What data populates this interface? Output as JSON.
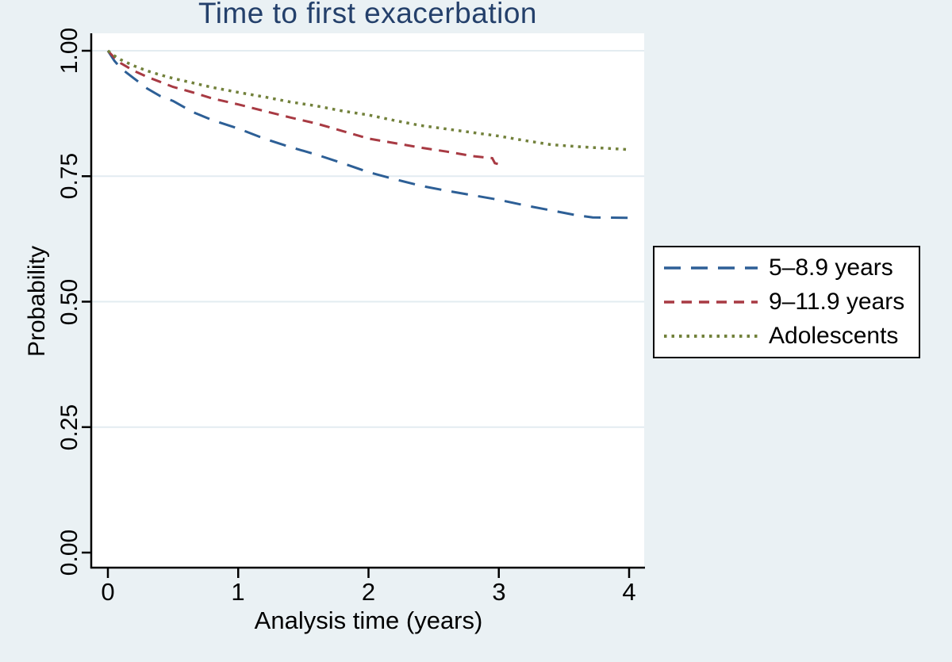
{
  "chart_data": {
    "type": "line",
    "subtype": "kaplan-meier-survival",
    "title": "Time to first exacerbation",
    "xlabel": "Analysis time (years)",
    "ylabel": "Probability",
    "xlim": [
      0,
      4
    ],
    "ylim": [
      0.0,
      1.0
    ],
    "x_ticks": [
      "0",
      "1",
      "2",
      "3",
      "4"
    ],
    "y_ticks": [
      "0.00",
      "0.25",
      "0.50",
      "0.75",
      "1.00"
    ],
    "grid": "horizontal-major",
    "legend_position": "right-outside-middle",
    "series": [
      {
        "name": "5–8.9 years",
        "color": "#2d5f96",
        "dash": "21 13",
        "width": 3,
        "x": [
          0,
          0.05,
          0.1,
          0.2,
          0.3,
          0.4,
          0.5,
          0.65,
          0.8,
          1.0,
          1.2,
          1.4,
          1.6,
          1.8,
          2.0,
          2.2,
          2.4,
          2.6,
          2.8,
          3.0,
          3.2,
          3.4,
          3.6,
          3.72,
          4.0
        ],
        "y": [
          1.0,
          0.98,
          0.965,
          0.945,
          0.925,
          0.91,
          0.9,
          0.878,
          0.862,
          0.845,
          0.825,
          0.808,
          0.793,
          0.776,
          0.758,
          0.744,
          0.731,
          0.721,
          0.712,
          0.703,
          0.692,
          0.682,
          0.672,
          0.668,
          0.667
        ]
      },
      {
        "name": "9–11.9 years",
        "color": "#a83a43",
        "dash": "13 9",
        "width": 3,
        "x": [
          0,
          0.05,
          0.1,
          0.2,
          0.3,
          0.4,
          0.5,
          0.65,
          0.8,
          1.0,
          1.2,
          1.4,
          1.6,
          1.8,
          2.0,
          2.2,
          2.4,
          2.6,
          2.8,
          2.95,
          2.97,
          3.0
        ],
        "y": [
          1.0,
          0.986,
          0.975,
          0.96,
          0.948,
          0.938,
          0.928,
          0.917,
          0.905,
          0.893,
          0.88,
          0.867,
          0.855,
          0.84,
          0.825,
          0.816,
          0.807,
          0.799,
          0.79,
          0.786,
          0.776,
          0.774
        ]
      },
      {
        "name": "Adolescents",
        "color": "#72813b",
        "dash": "3.5 6",
        "width": 3.5,
        "x": [
          0,
          0.05,
          0.1,
          0.2,
          0.3,
          0.4,
          0.5,
          0.65,
          0.8,
          1.0,
          1.2,
          1.4,
          1.6,
          1.8,
          2.0,
          2.2,
          2.4,
          2.6,
          2.8,
          3.0,
          3.2,
          3.4,
          3.6,
          3.8,
          4.0
        ],
        "y": [
          1.0,
          0.99,
          0.982,
          0.97,
          0.96,
          0.952,
          0.945,
          0.936,
          0.927,
          0.917,
          0.908,
          0.898,
          0.89,
          0.88,
          0.872,
          0.861,
          0.851,
          0.844,
          0.837,
          0.83,
          0.821,
          0.813,
          0.809,
          0.806,
          0.803
        ]
      }
    ],
    "colors": {
      "page_background": "#eaf1f4",
      "plot_background": "#ffffff",
      "grid_color": "#e3ecf1",
      "axis_color": "#000000",
      "title_color": "#24406b"
    }
  }
}
